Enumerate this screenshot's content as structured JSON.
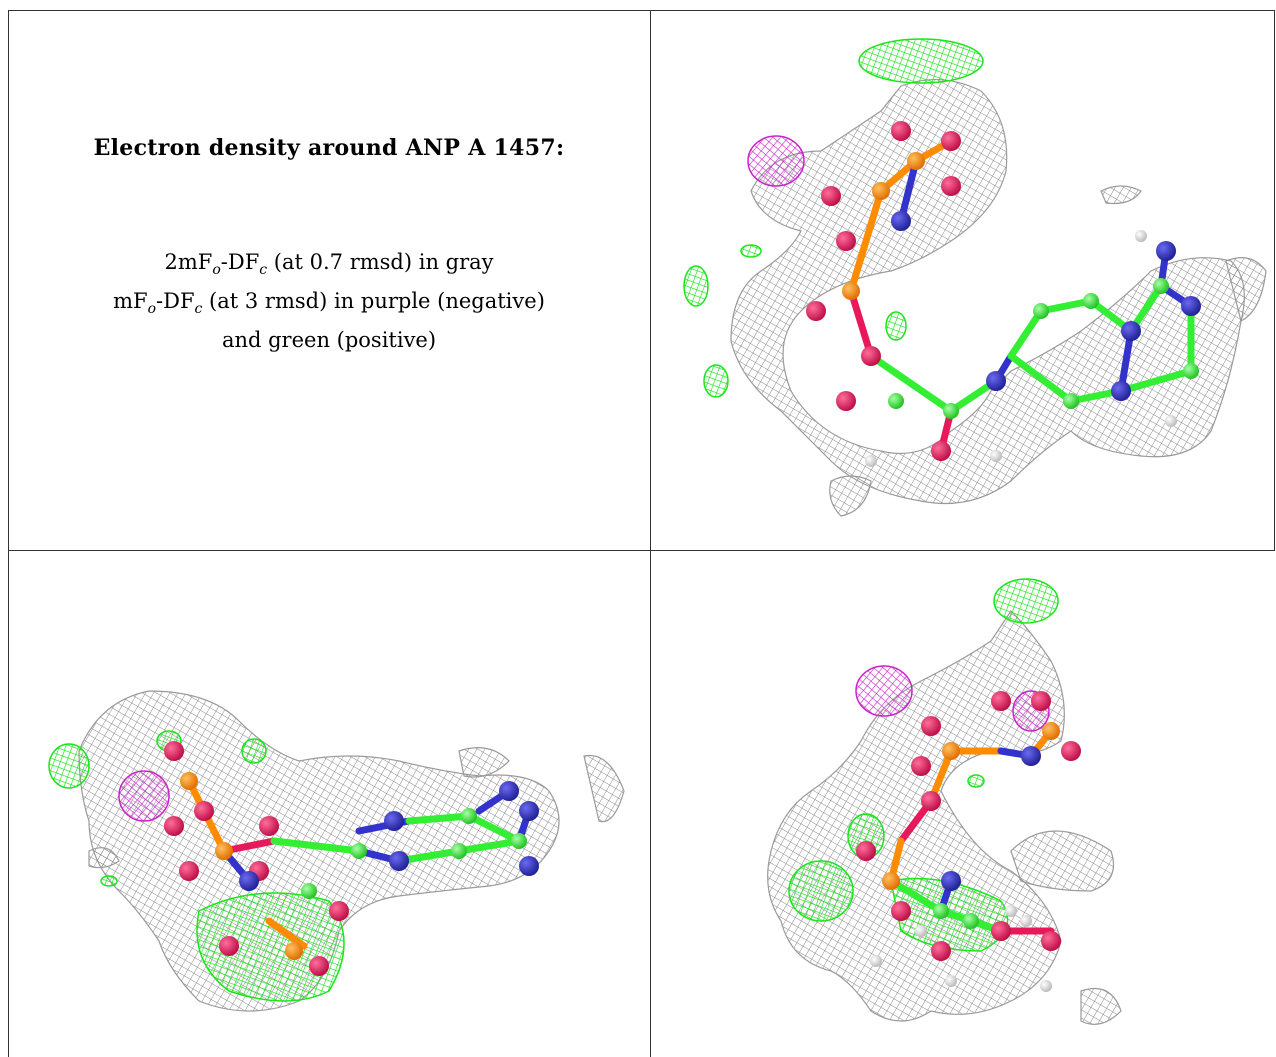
{
  "caption": {
    "title": "Electron density around ANP A 1457:",
    "line1": {
      "prefix": "2mF",
      "sub1": "o",
      "mid": "-DF",
      "sub2": "c",
      "rest": " (at 0.7 rmsd) in gray"
    },
    "line2": {
      "prefix": "mF",
      "sub1": "o",
      "mid": "-DF",
      "sub2": "c",
      "rest": " (at 3 rmsd) in purple (negative)"
    },
    "line3": "and green (positive)"
  },
  "colors": {
    "mesh_gray": "#9a9a9a",
    "mesh_green": "#19e619",
    "mesh_purple": "#cc22cc",
    "carbon": "#33ee33",
    "oxygen": "#e8195a",
    "nitrogen": "#3333cc",
    "phosphorus": "#ff8c00",
    "hydrogen": "#e6e6e6"
  },
  "panels": [
    {
      "id": "top-right",
      "view": "density view 1"
    },
    {
      "id": "bottom-left",
      "view": "density view 2"
    },
    {
      "id": "bottom-right",
      "view": "density view 3"
    }
  ]
}
